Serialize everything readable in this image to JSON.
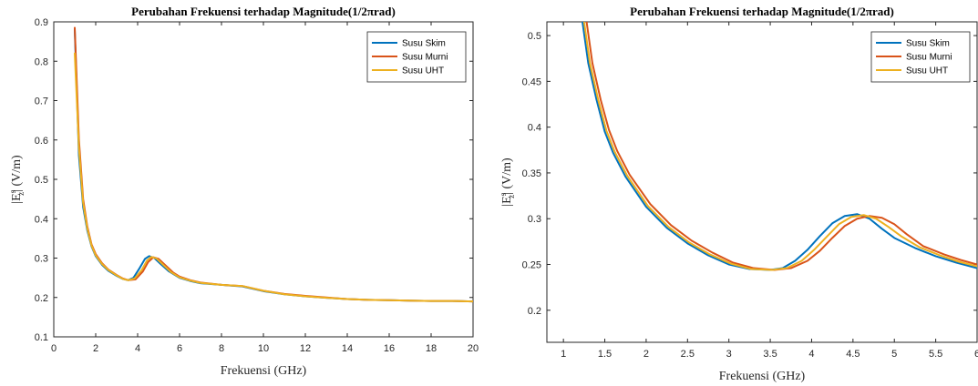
{
  "chart_data": [
    {
      "type": "line",
      "title": "Perubahan Frekuensi terhadap Magnitude(1/2πrad)",
      "xlabel": "Frekuensi (GHz)",
      "ylabel": "|Eᵩˢ| (V/m)",
      "ylabel_main": "|E",
      "ylabel_sup": "s",
      "ylabel_sub": "z",
      "ylabel_tail": "| (V/m)",
      "xlim": [
        0,
        20
      ],
      "ylim": [
        0.1,
        0.9
      ],
      "xticks": [
        0,
        2,
        4,
        6,
        8,
        10,
        12,
        14,
        16,
        18,
        20
      ],
      "yticks": [
        0.1,
        0.2,
        0.3,
        0.4,
        0.5,
        0.6,
        0.7,
        0.8,
        0.9
      ],
      "legend_position": "top-right",
      "series": [
        {
          "name": "Susu Skim",
          "color": "#0072BD",
          "x": [
            1.0,
            1.2,
            1.4,
            1.6,
            1.8,
            2.0,
            2.3,
            2.6,
            3.0,
            3.3,
            3.55,
            3.8,
            4.1,
            4.35,
            4.55,
            4.8,
            5.1,
            5.5,
            6.0,
            6.5,
            7.0,
            8.0,
            9.0,
            10.0,
            11.0,
            12.0,
            13.0,
            14.0,
            15.0,
            16.0,
            17.0,
            18.0,
            19.0,
            20.0
          ],
          "y": [
            0.88,
            0.56,
            0.43,
            0.37,
            0.33,
            0.305,
            0.283,
            0.268,
            0.255,
            0.247,
            0.244,
            0.25,
            0.275,
            0.298,
            0.305,
            0.3,
            0.285,
            0.266,
            0.25,
            0.242,
            0.236,
            0.232,
            0.228,
            0.216,
            0.208,
            0.203,
            0.199,
            0.196,
            0.194,
            0.193,
            0.192,
            0.191,
            0.191,
            0.19
          ]
        },
        {
          "name": "Susu Murni",
          "color": "#D95319",
          "x": [
            1.0,
            1.2,
            1.4,
            1.6,
            1.8,
            2.0,
            2.3,
            2.6,
            3.0,
            3.3,
            3.55,
            3.9,
            4.25,
            4.5,
            4.75,
            5.0,
            5.3,
            5.7,
            6.0,
            6.5,
            7.0,
            8.0,
            9.0,
            10.0,
            11.0,
            12.0,
            13.0,
            14.0,
            15.0,
            16.0,
            17.0,
            18.0,
            19.0,
            20.0
          ],
          "y": [
            0.885,
            0.6,
            0.45,
            0.38,
            0.335,
            0.31,
            0.287,
            0.271,
            0.257,
            0.248,
            0.244,
            0.246,
            0.266,
            0.29,
            0.302,
            0.298,
            0.283,
            0.263,
            0.253,
            0.244,
            0.238,
            0.232,
            0.229,
            0.217,
            0.209,
            0.204,
            0.2,
            0.196,
            0.194,
            0.193,
            0.192,
            0.191,
            0.191,
            0.19
          ]
        },
        {
          "name": "Susu UHT",
          "color": "#EDB120",
          "x": [
            1.0,
            1.2,
            1.4,
            1.6,
            1.8,
            2.0,
            2.3,
            2.6,
            3.0,
            3.3,
            3.55,
            3.85,
            4.2,
            4.45,
            4.65,
            4.9,
            5.2,
            5.6,
            6.0,
            6.5,
            7.0,
            8.0,
            9.0,
            10.0,
            11.0,
            12.0,
            13.0,
            14.0,
            15.0,
            16.0,
            17.0,
            18.0,
            19.0,
            20.0
          ],
          "y": [
            0.82,
            0.58,
            0.44,
            0.375,
            0.332,
            0.307,
            0.285,
            0.27,
            0.256,
            0.247,
            0.244,
            0.248,
            0.27,
            0.294,
            0.303,
            0.299,
            0.284,
            0.264,
            0.251,
            0.243,
            0.237,
            0.232,
            0.229,
            0.217,
            0.208,
            0.203,
            0.199,
            0.196,
            0.194,
            0.193,
            0.192,
            0.191,
            0.191,
            0.19
          ]
        }
      ]
    },
    {
      "type": "line",
      "title": "Perubahan Frekuensi terhadap Magnitude(1/2πrad)",
      "xlabel": "Frekuensi (GHz)",
      "ylabel": "|Eᵩˢ| (V/m)",
      "ylabel_main": "|E",
      "ylabel_sup": "s",
      "ylabel_sub": "z",
      "ylabel_tail": "| (V/m)",
      "xlim": [
        0.8,
        6.0
      ],
      "ylim": [
        0.165,
        0.515
      ],
      "xticks": [
        1,
        1.5,
        2,
        2.5,
        3,
        3.5,
        4,
        4.5,
        5,
        5.5,
        6
      ],
      "yticks": [
        0.2,
        0.25,
        0.3,
        0.35,
        0.4,
        0.45,
        0.5
      ],
      "legend_position": "top-right",
      "series": [
        {
          "name": "Susu Skim",
          "color": "#0072BD",
          "x": [
            1.23,
            1.3,
            1.4,
            1.5,
            1.6,
            1.75,
            2.0,
            2.25,
            2.5,
            2.75,
            3.0,
            3.25,
            3.5,
            3.65,
            3.8,
            3.95,
            4.1,
            4.25,
            4.4,
            4.55,
            4.7,
            4.85,
            5.0,
            5.25,
            5.5,
            5.75,
            6.0
          ],
          "y": [
            0.515,
            0.47,
            0.43,
            0.395,
            0.372,
            0.346,
            0.313,
            0.29,
            0.273,
            0.26,
            0.25,
            0.245,
            0.244,
            0.246,
            0.254,
            0.266,
            0.281,
            0.295,
            0.303,
            0.305,
            0.3,
            0.289,
            0.279,
            0.268,
            0.259,
            0.252,
            0.246
          ]
        },
        {
          "name": "Susu Murni",
          "color": "#D95319",
          "x": [
            1.28,
            1.35,
            1.45,
            1.55,
            1.65,
            1.8,
            2.05,
            2.3,
            2.55,
            2.8,
            3.05,
            3.3,
            3.55,
            3.75,
            3.95,
            4.1,
            4.25,
            4.4,
            4.55,
            4.7,
            4.85,
            5.0,
            5.15,
            5.35,
            5.6,
            5.8,
            6.0
          ],
          "y": [
            0.515,
            0.47,
            0.43,
            0.397,
            0.374,
            0.348,
            0.316,
            0.293,
            0.276,
            0.263,
            0.252,
            0.246,
            0.244,
            0.246,
            0.254,
            0.265,
            0.279,
            0.292,
            0.3,
            0.303,
            0.301,
            0.294,
            0.283,
            0.27,
            0.261,
            0.255,
            0.25
          ]
        },
        {
          "name": "Susu UHT",
          "color": "#EDB120",
          "x": [
            1.25,
            1.32,
            1.42,
            1.52,
            1.62,
            1.77,
            2.02,
            2.27,
            2.52,
            2.77,
            3.02,
            3.27,
            3.52,
            3.7,
            3.88,
            4.03,
            4.18,
            4.33,
            4.48,
            4.63,
            4.78,
            4.93,
            5.08,
            5.3,
            5.55,
            5.78,
            6.0
          ],
          "y": [
            0.515,
            0.47,
            0.43,
            0.396,
            0.373,
            0.347,
            0.314,
            0.291,
            0.274,
            0.261,
            0.251,
            0.245,
            0.244,
            0.246,
            0.254,
            0.266,
            0.28,
            0.294,
            0.302,
            0.304,
            0.3,
            0.291,
            0.281,
            0.269,
            0.26,
            0.253,
            0.248
          ]
        }
      ]
    }
  ]
}
